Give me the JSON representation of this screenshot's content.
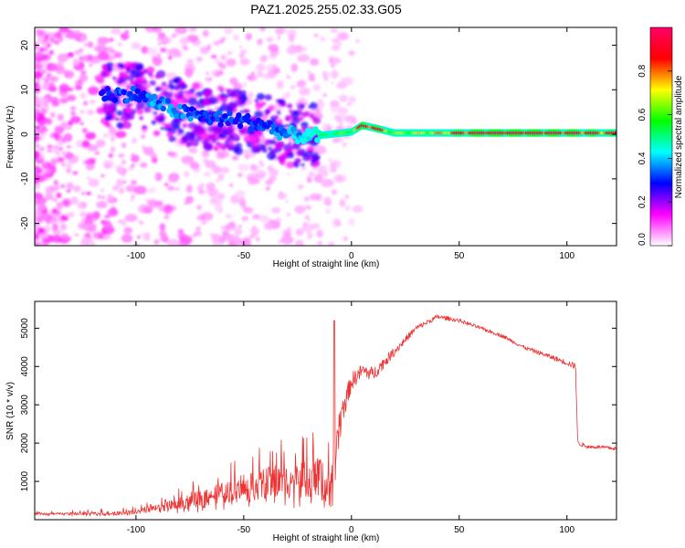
{
  "title": "PAZ1.2025.255.02.33.G05",
  "chart_data": [
    {
      "type": "heatmap",
      "xlabel": "Height of straight line (km)",
      "ylabel": "Frequency (Hz)",
      "xlim": [
        -147,
        123
      ],
      "ylim": [
        -25,
        24
      ],
      "xticks": [
        -100,
        -50,
        0,
        50,
        100
      ],
      "yticks": [
        -20,
        -10,
        0,
        10,
        20
      ],
      "grid": false,
      "colorbar": {
        "label": "Normalized spectral amplitude",
        "ticks": [
          "0.0",
          "0.2",
          "0.4",
          "0.6",
          "0.8"
        ],
        "range": [
          0,
          1
        ],
        "colormap": [
          "#ffffff",
          "#ff00ff",
          "#0000ff",
          "#00ffff",
          "#00ff00",
          "#ffff00",
          "#ff0000",
          "#ff0066"
        ]
      },
      "ridge": {
        "x": [
          -115,
          -100,
          -90,
          -80,
          -70,
          -60,
          -50,
          -40,
          -30,
          -20,
          -10,
          0,
          5,
          10,
          20,
          40,
          60,
          80,
          100,
          123
        ],
        "freq": [
          9,
          9,
          7,
          5,
          4,
          3.5,
          3,
          2,
          0,
          -0.5,
          0,
          0.5,
          2,
          1.5,
          0.3,
          0.3,
          0.3,
          0.3,
          0.3,
          0.3
        ],
        "amplitude": [
          0.3,
          0.3,
          0.35,
          0.35,
          0.3,
          0.3,
          0.3,
          0.3,
          0.35,
          0.4,
          0.5,
          0.6,
          0.85,
          0.9,
          0.6,
          0.7,
          0.95,
          0.95,
          0.9,
          0.8
        ]
      }
    },
    {
      "type": "line",
      "xlabel": "Height of straight line (km)",
      "ylabel": "SNR (10 * v/v)",
      "xlim": [
        -147,
        123
      ],
      "ylim": [
        0,
        5700
      ],
      "xticks": [
        -100,
        -50,
        0,
        50,
        100
      ],
      "yticks": [
        1000,
        2000,
        3000,
        4000,
        5000
      ],
      "grid": false,
      "series": [
        {
          "name": "SNR",
          "color": "#ee3333",
          "x": [
            -147,
            -130,
            -110,
            -100,
            -90,
            -80,
            -70,
            -60,
            -50,
            -40,
            -30,
            -20,
            -15,
            -12,
            -10,
            -8,
            -5,
            0,
            5,
            10,
            20,
            30,
            40,
            50,
            60,
            70,
            80,
            90,
            100,
            104,
            105,
            110,
            115,
            123
          ],
          "y": [
            150,
            150,
            170,
            200,
            300,
            420,
            550,
            700,
            800,
            950,
            1000,
            1050,
            1100,
            900,
            700,
            1200,
            2700,
            3600,
            3900,
            3800,
            4400,
            5000,
            5300,
            5200,
            5000,
            4800,
            4500,
            4300,
            4100,
            4000,
            2000,
            1900,
            1900,
            1850
          ],
          "noise": [
            50,
            60,
            80,
            100,
            150,
            250,
            350,
            450,
            550,
            700,
            750,
            800,
            850,
            900,
            800,
            1100,
            600,
            400,
            300,
            300,
            200,
            120,
            100,
            80,
            80,
            80,
            80,
            100,
            120,
            150,
            100,
            80,
            80,
            80
          ]
        }
      ]
    }
  ]
}
